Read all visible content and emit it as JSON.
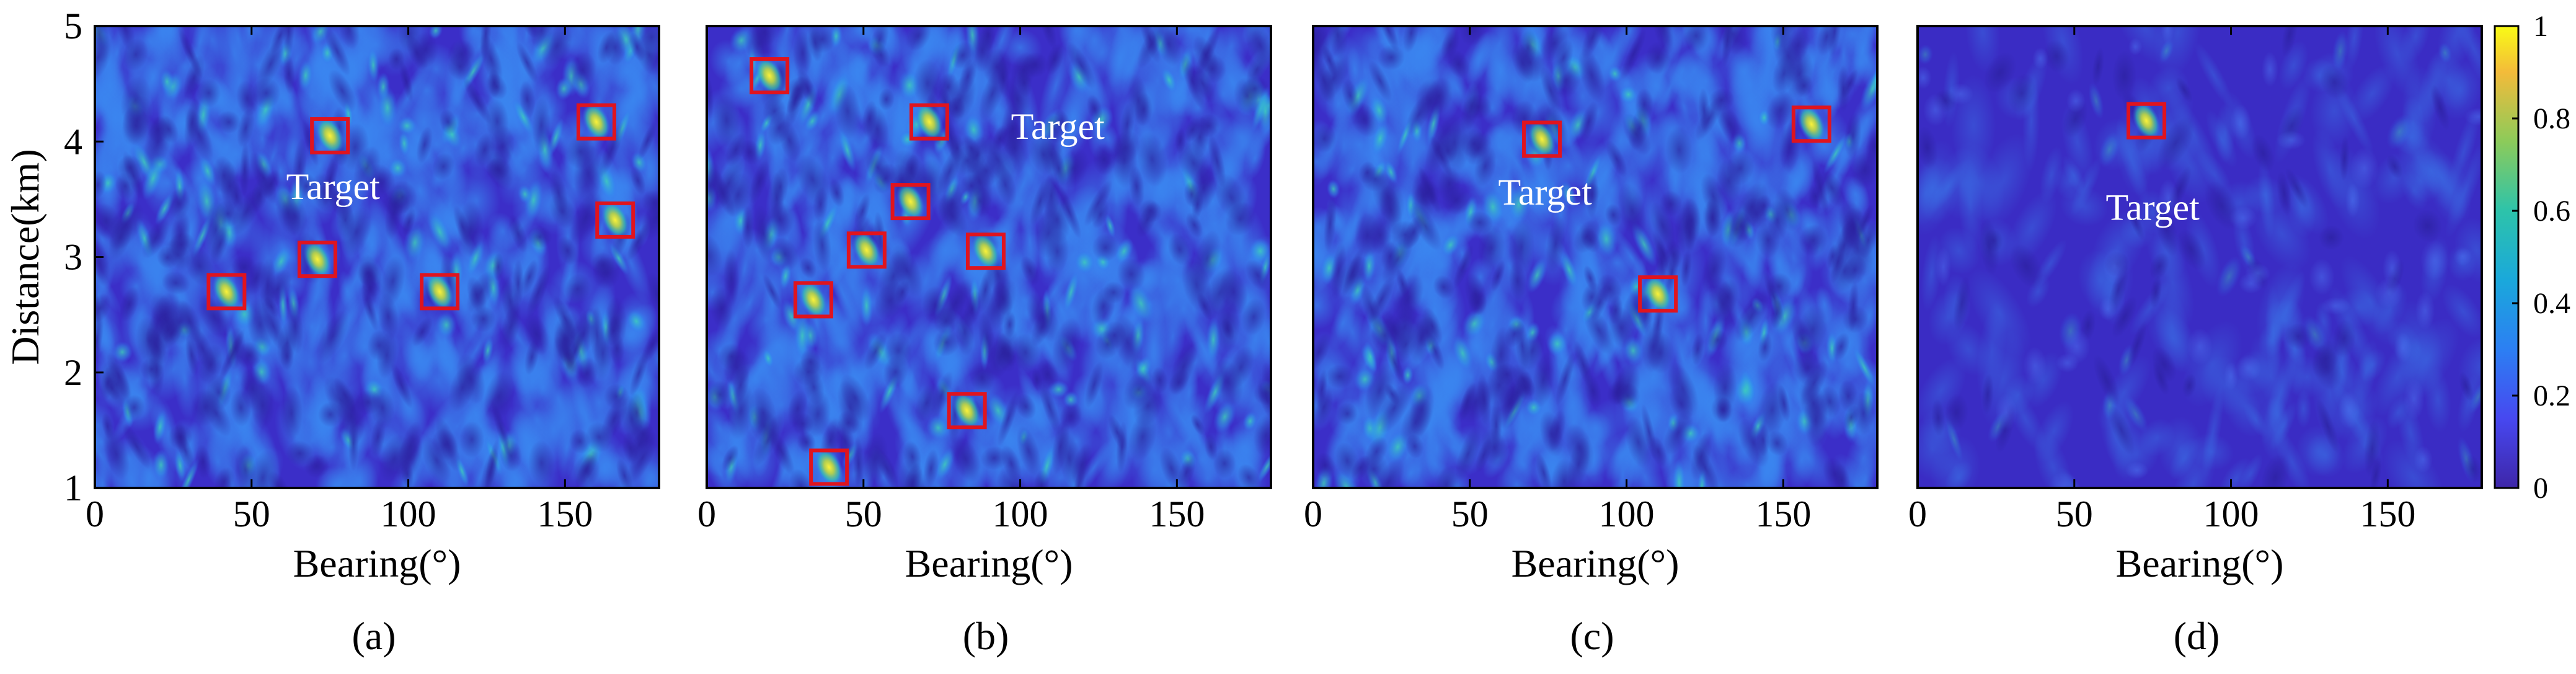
{
  "colors": {
    "low": "#3b2ec8",
    "mid": "#2f6ef2",
    "teal": "#2fb6c0",
    "high": "#f7e92a",
    "marker": "#e0141e",
    "annotation": "#ffffff"
  },
  "colorbar": {
    "ticks": [
      "0",
      "0.2",
      "0.4",
      "0.6",
      "0.8",
      "1"
    ],
    "tick_values": [
      0,
      0.2,
      0.4,
      0.6,
      0.8,
      1
    ],
    "colormap": "parula"
  },
  "chart_data": [
    {
      "type": "heatmap",
      "panel_label": "(a)",
      "xlabel": "Bearing(°)",
      "ylabel": "Distance(km)",
      "xlim": [
        0,
        180
      ],
      "ylim": [
        1,
        5
      ],
      "xticks": [
        "0",
        "50",
        "100",
        "150"
      ],
      "xtick_values": [
        0,
        50,
        100,
        150
      ],
      "yticks": [
        "1",
        "2",
        "3",
        "4",
        "5"
      ],
      "ytick_values": [
        1,
        2,
        3,
        4,
        5
      ],
      "background_level": 0.35,
      "annotation": {
        "text": "Target",
        "x": 76,
        "y": 3.6
      },
      "highlighted_peaks": [
        {
          "x": 75,
          "y": 4.05,
          "target": true
        },
        {
          "x": 160,
          "y": 4.17
        },
        {
          "x": 166,
          "y": 3.32
        },
        {
          "x": 42,
          "y": 2.7
        },
        {
          "x": 71,
          "y": 2.98
        },
        {
          "x": 110,
          "y": 2.7
        }
      ]
    },
    {
      "type": "heatmap",
      "panel_label": "(b)",
      "xlabel": "Bearing(°)",
      "xlim": [
        0,
        180
      ],
      "ylim": [
        1,
        5
      ],
      "xticks": [
        "0",
        "50",
        "100",
        "150"
      ],
      "xtick_values": [
        0,
        50,
        100,
        150
      ],
      "background_level": 0.3,
      "annotation": {
        "text": "Target",
        "x": 112,
        "y": 4.12
      },
      "highlighted_peaks": [
        {
          "x": 20,
          "y": 4.57
        },
        {
          "x": 71,
          "y": 4.17,
          "target": true
        },
        {
          "x": 65,
          "y": 3.48
        },
        {
          "x": 51,
          "y": 3.06
        },
        {
          "x": 89,
          "y": 3.05
        },
        {
          "x": 34,
          "y": 2.63
        },
        {
          "x": 83,
          "y": 1.67
        },
        {
          "x": 39,
          "y": 1.18
        }
      ]
    },
    {
      "type": "heatmap",
      "panel_label": "(c)",
      "xlabel": "Bearing(°)",
      "xlim": [
        0,
        180
      ],
      "ylim": [
        1,
        5
      ],
      "xticks": [
        "0",
        "50",
        "100",
        "150"
      ],
      "xtick_values": [
        0,
        50,
        100,
        150
      ],
      "background_level": 0.32,
      "annotation": {
        "text": "Target",
        "x": 74,
        "y": 3.55
      },
      "highlighted_peaks": [
        {
          "x": 73,
          "y": 4.02,
          "target": true
        },
        {
          "x": 159,
          "y": 4.15
        },
        {
          "x": 110,
          "y": 2.68
        }
      ]
    },
    {
      "type": "heatmap",
      "panel_label": "(d)",
      "xlabel": "Bearing(°)",
      "xlim": [
        0,
        180
      ],
      "ylim": [
        1,
        5
      ],
      "xticks": [
        "0",
        "50",
        "100",
        "150"
      ],
      "xtick_values": [
        0,
        50,
        100,
        150
      ],
      "background_level": 0.12,
      "annotation": {
        "text": "Target",
        "x": 75,
        "y": 3.42
      },
      "highlighted_peaks": [
        {
          "x": 73,
          "y": 4.18,
          "target": true
        }
      ]
    }
  ]
}
